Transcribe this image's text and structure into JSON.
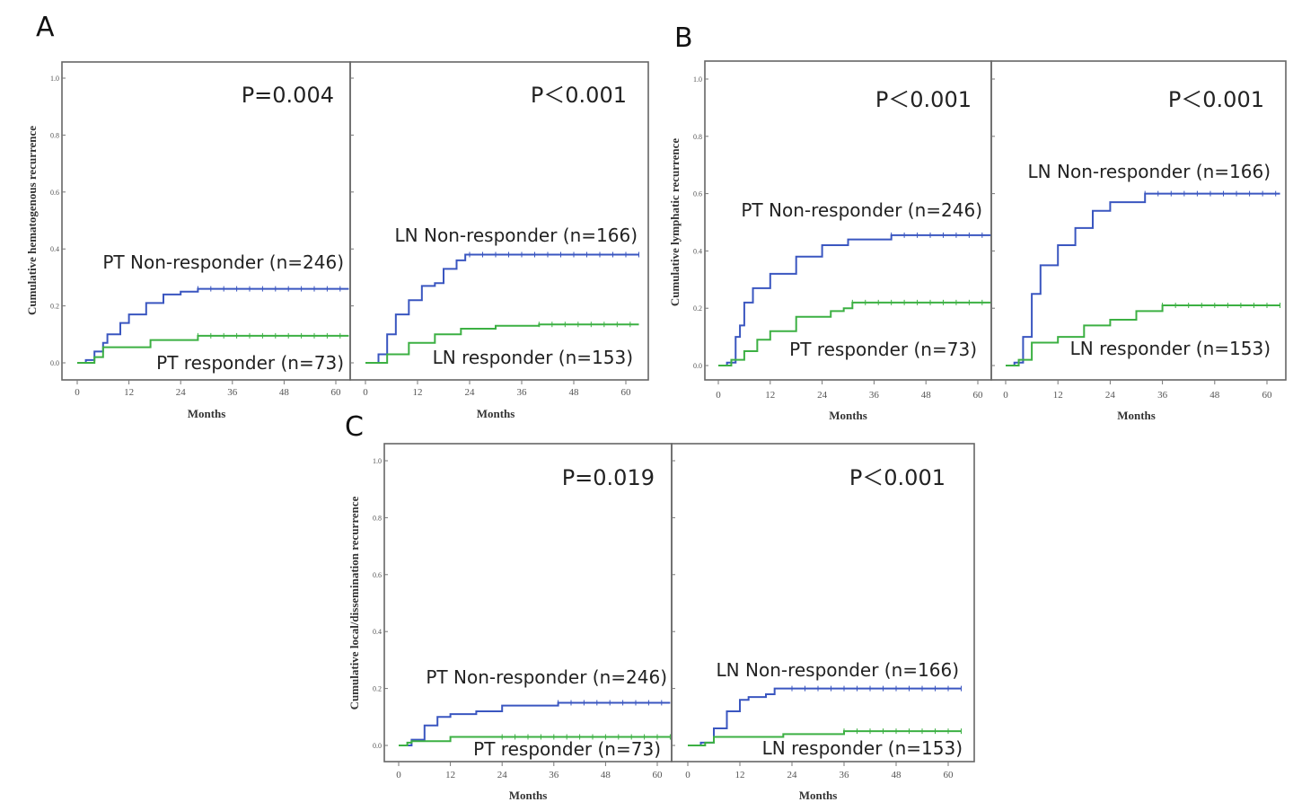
{
  "panels": [
    "A",
    "B",
    "C"
  ],
  "chart_data": [
    {
      "type": "line",
      "panel": "A",
      "position": "left",
      "ylabel": "Cumulative hematogenous recurrence",
      "xlabel": "Months",
      "p_value": "P=0.004",
      "xticks": [
        "0",
        "12",
        "24",
        "36",
        "48",
        "60"
      ],
      "yticks": [
        "0.0",
        "0.2",
        "0.4",
        "0.6",
        "0.8",
        "1.0"
      ],
      "xlim": [
        0,
        63
      ],
      "ylim": [
        0,
        1.0
      ],
      "series": [
        {
          "name": "PT Non-responder (n=246)",
          "color": "#3a56c0",
          "points": [
            [
              0,
              0
            ],
            [
              2,
              0.01
            ],
            [
              4,
              0.04
            ],
            [
              6,
              0.07
            ],
            [
              7,
              0.1
            ],
            [
              10,
              0.14
            ],
            [
              12,
              0.17
            ],
            [
              16,
              0.21
            ],
            [
              20,
              0.24
            ],
            [
              24,
              0.25
            ],
            [
              28,
              0.26
            ],
            [
              63,
              0.26
            ]
          ]
        },
        {
          "name": "PT responder (n=73)",
          "color": "#3cb043",
          "points": [
            [
              0,
              0
            ],
            [
              4,
              0.02
            ],
            [
              6,
              0.02
            ],
            [
              6,
              0.055
            ],
            [
              17,
              0.055
            ],
            [
              17,
              0.08
            ],
            [
              28,
              0.08
            ],
            [
              28,
              0.095
            ],
            [
              63,
              0.095
            ]
          ]
        }
      ]
    },
    {
      "type": "line",
      "panel": "A",
      "position": "right",
      "ylabel": "",
      "xlabel": "Months",
      "p_value": "P＜0.001",
      "xticks": [
        "0",
        "12",
        "24",
        "36",
        "48",
        "60"
      ],
      "xlim": [
        0,
        63
      ],
      "ylim": [
        0,
        1.0
      ],
      "series": [
        {
          "name": "LN Non-responder (n=166)",
          "color": "#3a56c0",
          "points": [
            [
              0,
              0
            ],
            [
              3,
              0.03
            ],
            [
              5,
              0.1
            ],
            [
              7,
              0.17
            ],
            [
              10,
              0.22
            ],
            [
              13,
              0.27
            ],
            [
              16,
              0.28
            ],
            [
              18,
              0.33
            ],
            [
              21,
              0.36
            ],
            [
              23,
              0.38
            ],
            [
              63,
              0.38
            ]
          ]
        },
        {
          "name": "LN responder (n=153)",
          "color": "#3cb043",
          "points": [
            [
              0,
              0
            ],
            [
              5,
              0.03
            ],
            [
              10,
              0.07
            ],
            [
              16,
              0.1
            ],
            [
              22,
              0.12
            ],
            [
              30,
              0.13
            ],
            [
              40,
              0.135
            ],
            [
              63,
              0.135
            ]
          ]
        }
      ]
    },
    {
      "type": "line",
      "panel": "B",
      "position": "left",
      "ylabel": "Cumulative lymphatic recurrence",
      "xlabel": "Months",
      "p_value": "P＜0.001",
      "xticks": [
        "0",
        "12",
        "24",
        "36",
        "48",
        "60"
      ],
      "yticks": [
        "0.0",
        "0.2",
        "0.4",
        "0.6",
        "0.8",
        "1.0"
      ],
      "xlim": [
        0,
        63
      ],
      "ylim": [
        0,
        1.0
      ],
      "series": [
        {
          "name": "PT Non-responder (n=246)",
          "color": "#3a56c0",
          "points": [
            [
              0,
              0
            ],
            [
              2,
              0.01
            ],
            [
              4,
              0.1
            ],
            [
              5,
              0.14
            ],
            [
              6,
              0.22
            ],
            [
              8,
              0.27
            ],
            [
              12,
              0.32
            ],
            [
              18,
              0.38
            ],
            [
              24,
              0.42
            ],
            [
              30,
              0.44
            ],
            [
              40,
              0.455
            ],
            [
              63,
              0.455
            ]
          ]
        },
        {
          "name": "PT responder (n=73)",
          "color": "#3cb043",
          "points": [
            [
              0,
              0
            ],
            [
              3,
              0.02
            ],
            [
              6,
              0.05
            ],
            [
              9,
              0.09
            ],
            [
              12,
              0.12
            ],
            [
              18,
              0.12
            ],
            [
              18,
              0.17
            ],
            [
              24,
              0.17
            ],
            [
              26,
              0.19
            ],
            [
              29,
              0.2
            ],
            [
              31,
              0.22
            ],
            [
              63,
              0.22
            ]
          ]
        }
      ]
    },
    {
      "type": "line",
      "panel": "B",
      "position": "right",
      "ylabel": "",
      "xlabel": "Months",
      "p_value": "P＜0.001",
      "xticks": [
        "0",
        "12",
        "24",
        "36",
        "48",
        "60"
      ],
      "xlim": [
        0,
        63
      ],
      "ylim": [
        0,
        1.0
      ],
      "series": [
        {
          "name": "LN Non-responder (n=166)",
          "color": "#3a56c0",
          "points": [
            [
              0,
              0
            ],
            [
              2,
              0.01
            ],
            [
              4,
              0.1
            ],
            [
              6,
              0.25
            ],
            [
              8,
              0.35
            ],
            [
              12,
              0.42
            ],
            [
              16,
              0.48
            ],
            [
              20,
              0.54
            ],
            [
              24,
              0.57
            ],
            [
              32,
              0.6
            ],
            [
              63,
              0.6
            ]
          ]
        },
        {
          "name": "LN responder (n=153)",
          "color": "#3cb043",
          "points": [
            [
              0,
              0
            ],
            [
              3,
              0.02
            ],
            [
              6,
              0.08
            ],
            [
              12,
              0.1
            ],
            [
              18,
              0.14
            ],
            [
              24,
              0.16
            ],
            [
              30,
              0.19
            ],
            [
              36,
              0.21
            ],
            [
              63,
              0.21
            ]
          ]
        }
      ]
    },
    {
      "type": "line",
      "panel": "C",
      "position": "left",
      "ylabel": "Cumulative local/dissemination recurrence",
      "xlabel": "Months",
      "p_value": "P=0.019",
      "xticks": [
        "0",
        "12",
        "24",
        "36",
        "48",
        "60"
      ],
      "yticks": [
        "0.0",
        "0.2",
        "0.4",
        "0.6",
        "0.8",
        "1.0"
      ],
      "xlim": [
        0,
        63
      ],
      "ylim": [
        0,
        1.0
      ],
      "series": [
        {
          "name": "PT Non-responder (n=246)",
          "color": "#3a56c0",
          "points": [
            [
              0,
              0
            ],
            [
              3,
              0.02
            ],
            [
              6,
              0.07
            ],
            [
              9,
              0.1
            ],
            [
              12,
              0.11
            ],
            [
              18,
              0.12
            ],
            [
              24,
              0.14
            ],
            [
              36,
              0.14
            ],
            [
              37,
              0.15
            ],
            [
              63,
              0.15
            ]
          ]
        },
        {
          "name": "PT responder (n=73)",
          "color": "#3cb043",
          "points": [
            [
              0,
              0
            ],
            [
              2,
              0.01
            ],
            [
              3,
              0.015
            ],
            [
              12,
              0.015
            ],
            [
              12,
              0.03
            ],
            [
              63,
              0.03
            ]
          ]
        }
      ]
    },
    {
      "type": "line",
      "panel": "C",
      "position": "right",
      "ylabel": "",
      "xlabel": "Months",
      "p_value": "P＜0.001",
      "xticks": [
        "0",
        "12",
        "24",
        "36",
        "48",
        "60"
      ],
      "xlim": [
        0,
        63
      ],
      "ylim": [
        0,
        1.0
      ],
      "series": [
        {
          "name": "LN Non-responder (n=166)",
          "color": "#3a56c0",
          "points": [
            [
              0,
              0
            ],
            [
              3,
              0.01
            ],
            [
              6,
              0.06
            ],
            [
              9,
              0.12
            ],
            [
              12,
              0.16
            ],
            [
              14,
              0.17
            ],
            [
              18,
              0.18
            ],
            [
              20,
              0.2
            ],
            [
              63,
              0.2
            ]
          ]
        },
        {
          "name": "LN responder (n=153)",
          "color": "#3cb043",
          "points": [
            [
              0,
              0
            ],
            [
              4,
              0.01
            ],
            [
              6,
              0.03
            ],
            [
              18,
              0.03
            ],
            [
              22,
              0.04
            ],
            [
              36,
              0.05
            ],
            [
              63,
              0.05
            ]
          ]
        }
      ]
    }
  ]
}
